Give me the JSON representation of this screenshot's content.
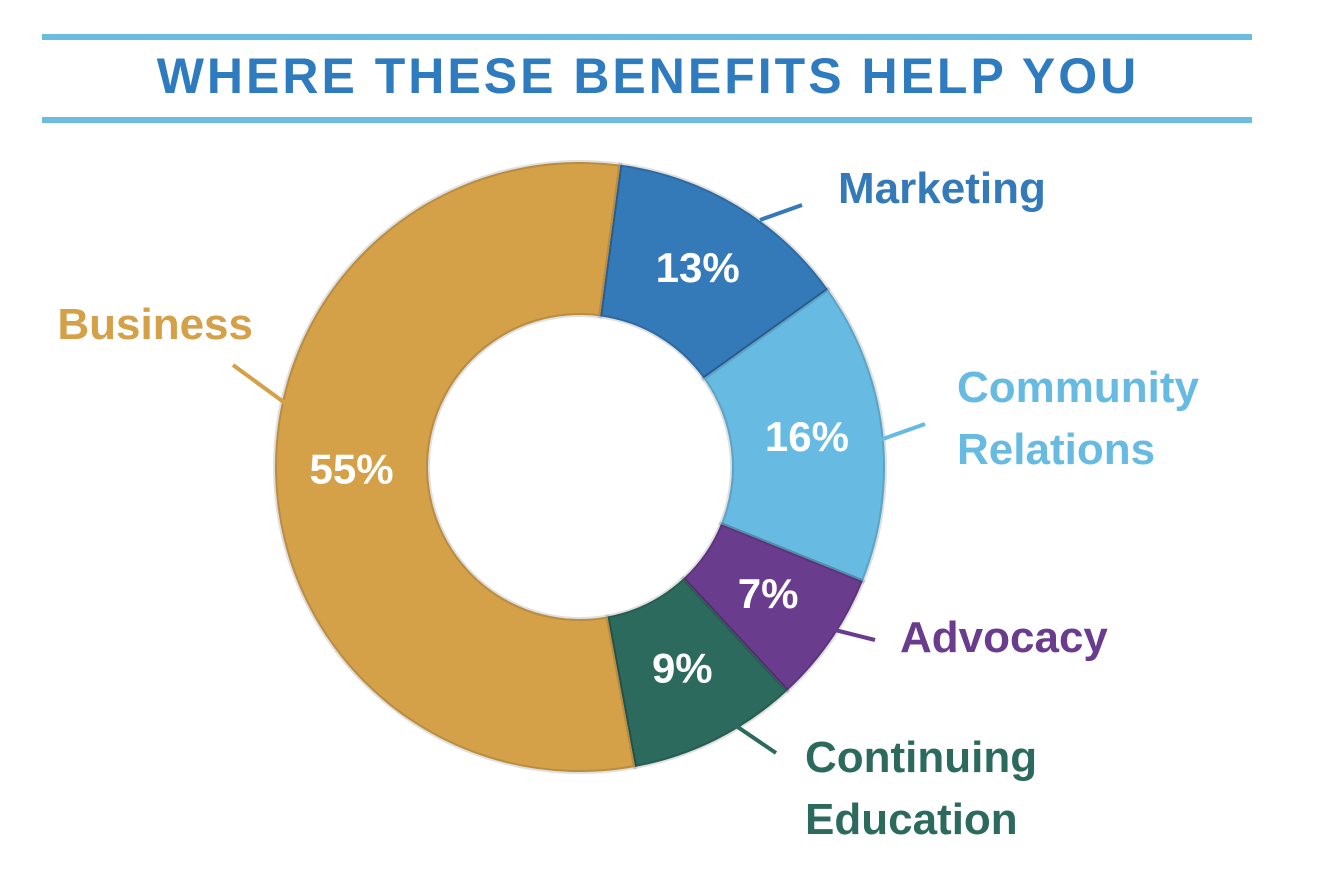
{
  "chart_data": {
    "type": "pie",
    "title": "WHERE THESE BENEFITS HELP YOU",
    "categories": [
      "Marketing",
      "Community Relations",
      "Advocacy",
      "Continuing Education",
      "Business"
    ],
    "values": [
      13,
      16,
      7,
      9,
      55
    ],
    "value_labels": [
      "13%",
      "16%",
      "7%",
      "9%",
      "55%"
    ],
    "colors": [
      "#3479b8",
      "#67bbe2",
      "#6a3c8e",
      "#2c6a5e",
      "#d4a048"
    ]
  }
}
